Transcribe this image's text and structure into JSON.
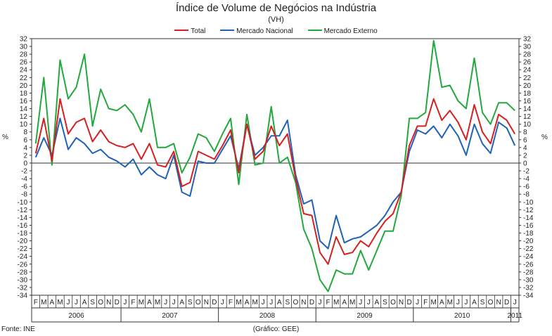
{
  "chart_data": {
    "type": "line",
    "title": "Índice de Volume de Negócios na Indústria",
    "subtitle": "(VH)",
    "ylabel_left": "%",
    "ylabel_right": "%",
    "ylim": [
      -34,
      32
    ],
    "ytick_step": 2,
    "grid": false,
    "legend_position": "top-center",
    "month_letters": [
      "F",
      "M",
      "A",
      "M",
      "J",
      "J",
      "A",
      "S",
      "O",
      "N",
      "D",
      "J",
      "F",
      "M",
      "A",
      "M",
      "J",
      "J",
      "A",
      "S",
      "O",
      "N",
      "D",
      "J",
      "F",
      "M",
      "A",
      "M",
      "J",
      "J",
      "A",
      "S",
      "O",
      "N",
      "D",
      "J",
      "F",
      "M",
      "A",
      "M",
      "J",
      "J",
      "A",
      "S",
      "O",
      "N",
      "D",
      "J",
      "F",
      "M",
      "A",
      "M",
      "J",
      "J",
      "A",
      "S",
      "O",
      "N",
      "D",
      "J"
    ],
    "years": [
      {
        "label": "2006",
        "start": 0,
        "end": 10
      },
      {
        "label": "2007",
        "start": 11,
        "end": 22
      },
      {
        "label": "2008",
        "start": 23,
        "end": 34
      },
      {
        "label": "2009",
        "start": 35,
        "end": 46
      },
      {
        "label": "2010",
        "start": 47,
        "end": 58
      },
      {
        "label": "2011",
        "start": 59,
        "end": 59
      }
    ],
    "series": [
      {
        "name": "Total",
        "color": "#d42020",
        "values": [
          2.5,
          11.5,
          0.5,
          16.5,
          7.5,
          10.5,
          11.5,
          5.5,
          8.5,
          5.5,
          4.5,
          4.0,
          5.0,
          1.0,
          5.0,
          -0.5,
          -1.0,
          3.0,
          -6.0,
          -5.0,
          3.0,
          2.0,
          1.0,
          4.5,
          8.5,
          -2.5,
          10.0,
          1.0,
          3.0,
          9.5,
          4.5,
          7.5,
          -4.0,
          -13.0,
          -13.5,
          -23.0,
          -26.0,
          -19.0,
          -23.5,
          -23.0,
          -20.0,
          -21.5,
          -18.0,
          -15.0,
          -13.0,
          -7.5,
          4.5,
          9.5,
          9.5,
          16.5,
          11.0,
          13.5,
          10.5,
          6.0,
          15.0,
          8.0,
          5.0,
          12.5,
          11.0,
          7.5
        ]
      },
      {
        "name": "Mercado Nacional",
        "color": "#1f62b8",
        "values": [
          1.5,
          6.5,
          2.0,
          11.5,
          3.5,
          6.5,
          5.0,
          2.5,
          3.5,
          1.5,
          0.5,
          -1.0,
          1.0,
          -3.0,
          -1.0,
          -3.0,
          -4.0,
          2.0,
          -7.5,
          -8.5,
          0.5,
          0.0,
          0.0,
          3.5,
          7.0,
          -1.5,
          10.0,
          2.0,
          4.0,
          7.0,
          7.0,
          11.0,
          -3.0,
          -10.5,
          -9.5,
          -20.0,
          -22.0,
          -13.5,
          -20.5,
          -19.5,
          -19.0,
          -17.5,
          -16.0,
          -13.5,
          -10.0,
          -7.5,
          3.0,
          8.5,
          7.5,
          9.5,
          6.5,
          10.0,
          7.0,
          2.0,
          10.0,
          5.0,
          2.5,
          10.5,
          9.0,
          4.5
        ]
      },
      {
        "name": "Mercado Externo",
        "color": "#22a83c",
        "values": [
          5.0,
          22.0,
          -0.5,
          26.5,
          16.5,
          19.5,
          28.0,
          9.5,
          19.0,
          14.0,
          13.5,
          15.0,
          12.5,
          8.0,
          16.5,
          4.0,
          4.0,
          5.0,
          -2.5,
          1.5,
          7.5,
          6.5,
          3.0,
          7.5,
          11.5,
          -5.5,
          12.5,
          -0.5,
          0.0,
          14.5,
          0.0,
          1.5,
          -5.0,
          -17.0,
          -22.0,
          -30.0,
          -33.0,
          -27.5,
          -28.5,
          -28.5,
          -22.5,
          -27.5,
          -22.5,
          -17.5,
          -17.5,
          -8.5,
          11.5,
          11.5,
          13.0,
          31.5,
          19.5,
          20.0,
          16.0,
          14.0,
          27.0,
          13.0,
          10.0,
          15.5,
          15.5,
          13.5
        ]
      }
    ]
  },
  "footer": {
    "source": "Fonte: INE",
    "credit": "(Gráfico: GEE)"
  }
}
